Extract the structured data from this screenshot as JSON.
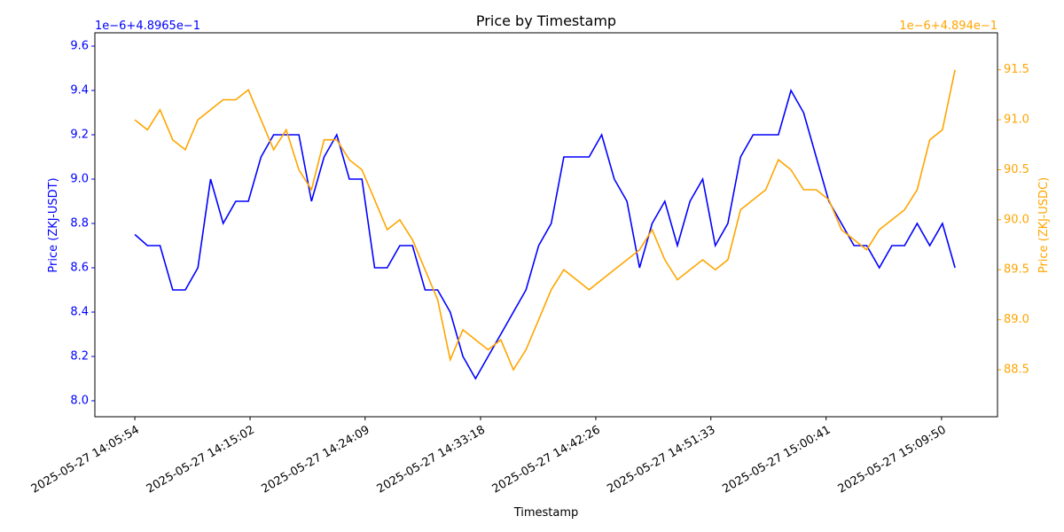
{
  "chart_data": {
    "type": "line",
    "title": "Price by Timestamp",
    "xlabel": "Timestamp",
    "ylabel": "Price (ZKJ-USDT)",
    "y2label": "Price (ZKJ-USDC)",
    "y_offset_label": "1e−6+4.8965e−1",
    "y2_offset_label": "1e−6+4.894e−1",
    "x": [
      "2025-05-27 14:05:54",
      "2025-05-27 14:06:54",
      "2025-05-27 14:07:54",
      "2025-05-27 14:08:54",
      "2025-05-27 14:09:54",
      "2025-05-27 14:10:54",
      "2025-05-27 14:11:54",
      "2025-05-27 14:12:54",
      "2025-05-27 14:13:54",
      "2025-05-27 14:14:54",
      "2025-05-27 14:15:54",
      "2025-05-27 14:16:54",
      "2025-05-27 14:17:54",
      "2025-05-27 14:18:54",
      "2025-05-27 14:19:54",
      "2025-05-27 14:20:54",
      "2025-05-27 14:21:54",
      "2025-05-27 14:22:54",
      "2025-05-27 14:23:54",
      "2025-05-27 14:24:54",
      "2025-05-27 14:25:54",
      "2025-05-27 14:26:54",
      "2025-05-27 14:27:54",
      "2025-05-27 14:28:54",
      "2025-05-27 14:29:54",
      "2025-05-27 14:30:54",
      "2025-05-27 14:31:54",
      "2025-05-27 14:32:54",
      "2025-05-27 14:33:54",
      "2025-05-27 14:34:54",
      "2025-05-27 14:35:54",
      "2025-05-27 14:36:54",
      "2025-05-27 14:37:54",
      "2025-05-27 14:38:54",
      "2025-05-27 14:39:54",
      "2025-05-27 14:40:54",
      "2025-05-27 14:41:54",
      "2025-05-27 14:42:54",
      "2025-05-27 14:43:54",
      "2025-05-27 14:44:54",
      "2025-05-27 14:45:54",
      "2025-05-27 14:46:54",
      "2025-05-27 14:47:54",
      "2025-05-27 14:48:54",
      "2025-05-27 14:49:54",
      "2025-05-27 14:50:54",
      "2025-05-27 14:51:54",
      "2025-05-27 14:52:54",
      "2025-05-27 14:53:54",
      "2025-05-27 14:54:54",
      "2025-05-27 14:55:54",
      "2025-05-27 14:56:54",
      "2025-05-27 14:57:54",
      "2025-05-27 14:58:54",
      "2025-05-27 14:59:54",
      "2025-05-27 15:00:54",
      "2025-05-27 15:01:54",
      "2025-05-27 15:02:54",
      "2025-05-27 15:03:54",
      "2025-05-27 15:04:54",
      "2025-05-27 15:05:54",
      "2025-05-27 15:06:54",
      "2025-05-27 15:07:54",
      "2025-05-27 15:08:54",
      "2025-05-27 15:09:54",
      "2025-05-27 15:10:54"
    ],
    "series": [
      {
        "name": "ZKJ-USDT",
        "color": "blue",
        "axis": "y",
        "values": [
          8.75,
          8.7,
          8.7,
          8.5,
          8.5,
          8.6,
          9.0,
          8.8,
          8.9,
          8.9,
          9.1,
          9.2,
          9.2,
          9.2,
          8.9,
          9.1,
          9.2,
          9.0,
          9.0,
          8.6,
          8.6,
          8.7,
          8.7,
          8.5,
          8.5,
          8.4,
          8.2,
          8.1,
          8.2,
          8.3,
          8.4,
          8.5,
          8.7,
          8.8,
          9.1,
          9.1,
          9.1,
          9.2,
          9.0,
          8.9,
          8.6,
          8.8,
          8.9,
          8.7,
          8.9,
          9.0,
          8.7,
          8.8,
          9.1,
          9.2,
          9.2,
          9.2,
          9.4,
          9.3,
          9.1,
          8.9,
          8.8,
          8.7,
          8.7,
          8.6,
          8.7,
          8.7,
          8.8,
          8.7,
          8.8,
          8.6
        ]
      },
      {
        "name": "ZKJ-USDC",
        "color": "orange",
        "axis": "y2",
        "values": [
          91.0,
          90.9,
          91.1,
          90.8,
          90.7,
          91.0,
          91.1,
          91.2,
          91.2,
          91.3,
          91.0,
          90.7,
          90.9,
          90.5,
          90.3,
          90.8,
          90.8,
          90.6,
          90.5,
          90.2,
          89.9,
          90.0,
          89.8,
          89.5,
          89.2,
          88.6,
          88.9,
          88.8,
          88.7,
          88.8,
          88.5,
          88.7,
          89.0,
          89.3,
          89.5,
          89.4,
          89.3,
          89.4,
          89.5,
          89.6,
          89.7,
          89.9,
          89.6,
          89.4,
          89.5,
          89.6,
          89.5,
          89.6,
          90.1,
          90.2,
          90.3,
          90.6,
          90.5,
          90.3,
          90.3,
          90.2,
          89.9,
          89.8,
          89.7,
          89.9,
          90.0,
          90.1,
          90.3,
          90.8,
          90.9,
          91.5
        ]
      }
    ],
    "xlim": [
      "2025-05-27 14:02:44",
      "2025-05-27 15:14:16"
    ],
    "xticks": [
      "2025-05-27 14:05:54",
      "2025-05-27 14:15:02",
      "2025-05-27 14:24:09",
      "2025-05-27 14:33:18",
      "2025-05-27 14:42:26",
      "2025-05-27 14:51:33",
      "2025-05-27 15:00:41",
      "2025-05-27 15:09:50"
    ],
    "ylim": [
      7.928,
      9.66
    ],
    "yticks": [
      {
        "value": 8,
        "label": "8.0"
      },
      8.2,
      8.4,
      8.6,
      8.8,
      {
        "value": 9,
        "label": "9.0"
      },
      9.2,
      9.4,
      9.6
    ],
    "y2lim": [
      88.03,
      91.87
    ],
    "y2ticks": [
      88.5,
      {
        "value": 89,
        "label": "89.0"
      },
      89.5,
      {
        "value": 90,
        "label": "90.0"
      },
      90.5,
      {
        "value": 91,
        "label": "91.0"
      },
      91.5
    ],
    "grid": false
  }
}
